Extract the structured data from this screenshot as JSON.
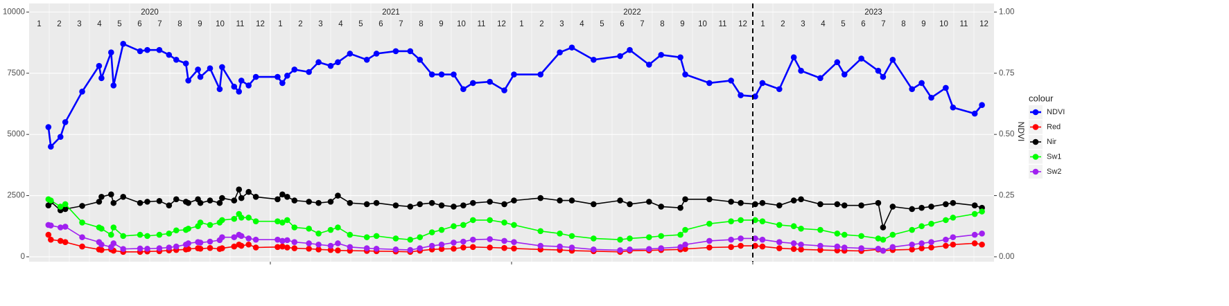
{
  "chart_data": {
    "type": "line",
    "strip": {
      "years": [
        "2020",
        "2021",
        "2022",
        "2023"
      ],
      "months": [
        "1",
        "2",
        "3",
        "4",
        "5",
        "6",
        "7",
        "8",
        "9",
        "10",
        "11",
        "12"
      ]
    },
    "y2_label": "NDVI",
    "legend_title": "colour",
    "vline": 2023,
    "x": [
      2020.08,
      2020.09,
      2020.13,
      2020.15,
      2020.22,
      2020.29,
      2020.3,
      2020.34,
      2020.35,
      2020.39,
      2020.46,
      2020.49,
      2020.54,
      2020.58,
      2020.61,
      2020.65,
      2020.66,
      2020.7,
      2020.71,
      2020.75,
      2020.79,
      2020.8,
      2020.85,
      2020.87,
      2020.88,
      2020.91,
      2020.94,
      2021.03,
      2021.05,
      2021.07,
      2021.1,
      2021.16,
      2021.2,
      2021.25,
      2021.28,
      2021.33,
      2021.4,
      2021.44,
      2021.52,
      2021.58,
      2021.62,
      2021.67,
      2021.71,
      2021.76,
      2021.8,
      2021.84,
      2021.91,
      2021.97,
      2022.01,
      2022.12,
      2022.2,
      2022.25,
      2022.34,
      2022.45,
      2022.49,
      2022.57,
      2022.62,
      2022.7,
      2022.72,
      2022.82,
      2022.91,
      2022.95,
      2023.01,
      2023.04,
      2023.11,
      2023.17,
      2023.2,
      2023.28,
      2023.35,
      2023.38,
      2023.45,
      2023.52,
      2023.54,
      2023.58,
      2023.66,
      2023.7,
      2023.74,
      2023.8,
      2023.83,
      2023.92,
      2023.95
    ],
    "series": [
      {
        "name": "NDVI",
        "color": "#0000ff",
        "axis": "y2",
        "values": [
          0.53,
          0.45,
          0.49,
          0.55,
          0.675,
          0.78,
          0.73,
          0.835,
          0.7,
          0.87,
          0.84,
          0.845,
          0.845,
          0.825,
          0.805,
          0.79,
          0.72,
          0.765,
          0.735,
          0.77,
          0.685,
          0.775,
          0.695,
          0.675,
          0.72,
          0.7,
          0.735,
          0.735,
          0.71,
          0.74,
          0.765,
          0.755,
          0.795,
          0.78,
          0.795,
          0.83,
          0.805,
          0.83,
          0.84,
          0.84,
          0.805,
          0.745,
          0.745,
          0.745,
          0.685,
          0.71,
          0.715,
          0.68,
          0.745,
          0.745,
          0.835,
          0.855,
          0.805,
          0.82,
          0.845,
          0.785,
          0.825,
          0.815,
          0.745,
          0.71,
          0.72,
          0.66,
          0.655,
          0.71,
          0.685,
          0.815,
          0.76,
          0.73,
          0.795,
          0.745,
          0.81,
          0.76,
          0.735,
          0.805,
          0.685,
          0.71,
          0.65,
          0.69,
          0.61,
          0.585,
          0.62
        ]
      },
      {
        "name": "Red",
        "color": "#ff0000",
        "values": [
          900,
          700,
          650,
          600,
          420,
          300,
          280,
          300,
          250,
          200,
          200,
          220,
          230,
          260,
          280,
          300,
          320,
          350,
          330,
          360,
          320,
          350,
          420,
          500,
          450,
          500,
          380,
          400,
          420,
          380,
          350,
          330,
          300,
          280,
          260,
          250,
          240,
          230,
          220,
          200,
          250,
          300,
          320,
          330,
          380,
          400,
          380,
          360,
          340,
          300,
          280,
          250,
          230,
          200,
          250,
          260,
          280,
          300,
          320,
          380,
          400,
          450,
          450,
          420,
          350,
          320,
          300,
          280,
          260,
          250,
          240,
          300,
          250,
          280,
          300,
          350,
          380,
          450,
          500,
          550,
          500
        ]
      },
      {
        "name": "Nir",
        "color": "#000000",
        "values": [
          2100,
          2250,
          1900,
          1950,
          2080,
          2250,
          2450,
          2550,
          2200,
          2450,
          2200,
          2250,
          2280,
          2100,
          2350,
          2250,
          2200,
          2350,
          2200,
          2300,
          2200,
          2400,
          2300,
          2750,
          2400,
          2650,
          2450,
          2350,
          2550,
          2450,
          2300,
          2250,
          2200,
          2250,
          2500,
          2200,
          2150,
          2200,
          2100,
          2050,
          2150,
          2200,
          2100,
          2050,
          2100,
          2200,
          2250,
          2150,
          2300,
          2400,
          2300,
          2300,
          2150,
          2300,
          2150,
          2250,
          2050,
          2000,
          2350,
          2350,
          2250,
          2200,
          2150,
          2200,
          2100,
          2300,
          2350,
          2150,
          2150,
          2100,
          2100,
          2200,
          1200,
          2050,
          1950,
          2000,
          2050,
          2150,
          2200,
          2100,
          2000
        ]
      },
      {
        "name": "Sw1",
        "color": "#00ff00",
        "values": [
          2350,
          2300,
          2050,
          2150,
          1400,
          1200,
          1150,
          900,
          1200,
          850,
          900,
          850,
          900,
          950,
          1080,
          1100,
          1150,
          1250,
          1400,
          1300,
          1400,
          1500,
          1550,
          1750,
          1600,
          1600,
          1450,
          1450,
          1400,
          1500,
          1200,
          1150,
          950,
          1100,
          1200,
          900,
          800,
          850,
          750,
          700,
          800,
          1000,
          1100,
          1250,
          1300,
          1500,
          1500,
          1400,
          1300,
          1050,
          950,
          850,
          750,
          700,
          750,
          800,
          850,
          900,
          1100,
          1350,
          1450,
          1500,
          1500,
          1450,
          1300,
          1250,
          1150,
          1100,
          950,
          900,
          850,
          750,
          700,
          900,
          1100,
          1250,
          1350,
          1500,
          1600,
          1750,
          1850
        ]
      },
      {
        "name": "Sw2",
        "color": "#a020f0",
        "values": [
          1300,
          1280,
          1200,
          1230,
          800,
          600,
          500,
          400,
          550,
          320,
          340,
          330,
          350,
          380,
          420,
          500,
          550,
          600,
          580,
          620,
          680,
          800,
          800,
          900,
          850,
          750,
          700,
          700,
          650,
          680,
          600,
          550,
          500,
          450,
          550,
          400,
          350,
          330,
          300,
          280,
          350,
          450,
          500,
          580,
          620,
          700,
          720,
          650,
          600,
          450,
          420,
          380,
          300,
          270,
          300,
          320,
          350,
          400,
          500,
          650,
          700,
          750,
          750,
          700,
          600,
          550,
          500,
          450,
          420,
          380,
          350,
          330,
          250,
          400,
          500,
          550,
          600,
          700,
          800,
          900,
          950
        ]
      }
    ],
    "xlim": [
      2020,
      2024
    ],
    "xticks": [
      2021,
      2022,
      2023
    ],
    "ylim": [
      -200,
      10350
    ],
    "yticks": [
      0,
      2500,
      5000,
      7500,
      10000
    ],
    "y2lim": [
      -0.02,
      1.035
    ],
    "y2ticks": [
      {
        "value": 0,
        "label": "0.00"
      },
      {
        "value": 0.25,
        "label": "0.25"
      },
      {
        "value": 0.5,
        "label": "0.50"
      },
      {
        "value": 0.75,
        "label": "0.75"
      },
      {
        "value": 1,
        "label": "1.00"
      }
    ],
    "grid": true
  }
}
